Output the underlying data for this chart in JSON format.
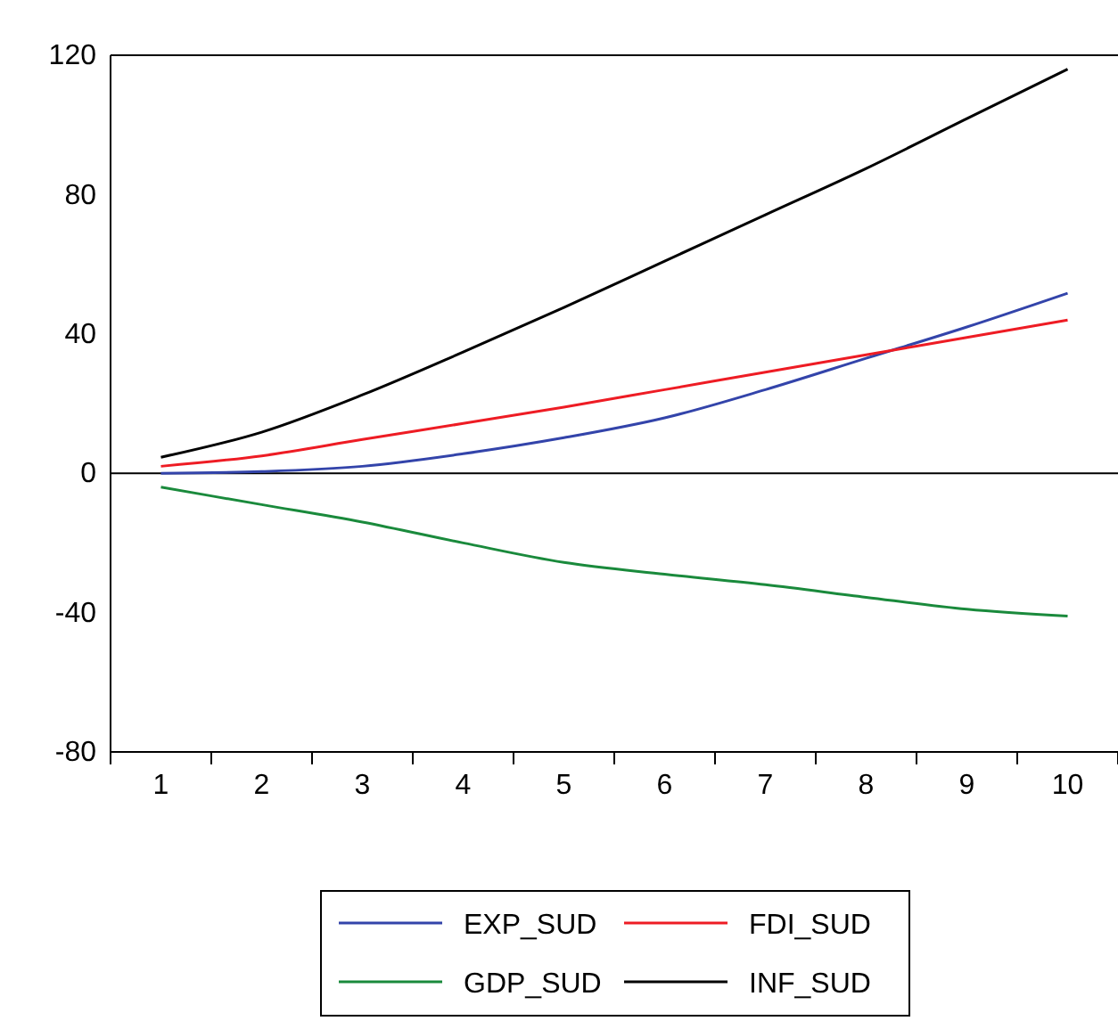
{
  "chart_data": {
    "type": "line",
    "categories": [
      "1",
      "2",
      "3",
      "4",
      "5",
      "6",
      "7",
      "8",
      "9",
      "10"
    ],
    "series": [
      {
        "name": "EXP_SUD",
        "color": "#3344aa",
        "values": [
          0,
          0.5,
          2,
          5.6,
          10.2,
          15.9,
          24,
          33,
          42,
          51.7
        ]
      },
      {
        "name": "FDI_SUD",
        "color": "#ee1c24",
        "values": [
          2,
          5,
          9.7,
          14.3,
          19,
          24,
          29,
          34,
          39,
          44
        ]
      },
      {
        "name": "GDP_SUD",
        "color": "#1a8a3c",
        "values": [
          -4,
          -9,
          -14,
          -20,
          -25.6,
          -29,
          -32,
          -35.6,
          -39,
          -41
        ]
      },
      {
        "name": "INF_SUD",
        "color": "#000000",
        "values": [
          4.6,
          11.8,
          22.5,
          34.8,
          47.6,
          60.9,
          74.2,
          87.5,
          101.8,
          116
        ]
      }
    ],
    "ylim": [
      -80,
      120
    ],
    "yticks": [
      -80,
      -40,
      0,
      40,
      80,
      120
    ],
    "ref_lines": [
      {
        "axis": "y",
        "value": 0,
        "color": "#000000"
      }
    ],
    "grid": false,
    "legend": "bottom",
    "marker": "none",
    "line_style": "solid"
  }
}
